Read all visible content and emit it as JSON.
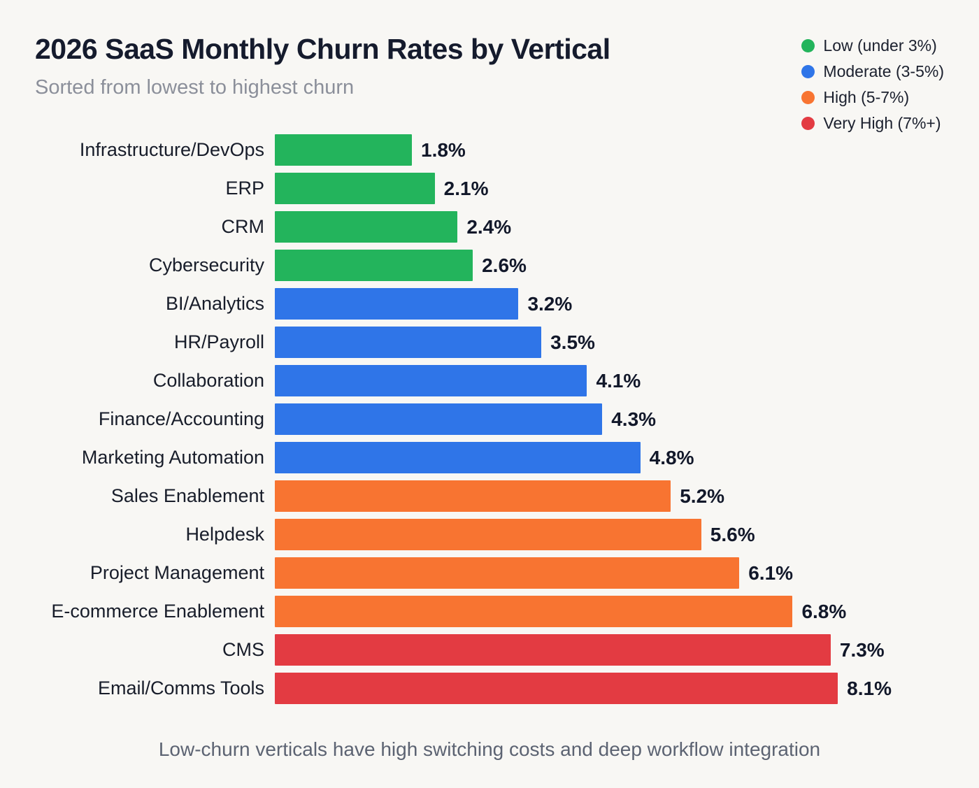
{
  "header": {
    "title": "2026 SaaS Monthly Churn Rates by Vertical",
    "subtitle": "Sorted from lowest to highest churn"
  },
  "legend": {
    "position": "top-right",
    "items": [
      {
        "label": "Low (under 3%)",
        "tier": "low",
        "color": "#23b45c"
      },
      {
        "label": "Moderate (3-5%)",
        "tier": "moderate",
        "color": "#2f75e8"
      },
      {
        "label": "High (5-7%)",
        "tier": "high",
        "color": "#f87431"
      },
      {
        "label": "Very High (7%+)",
        "tier": "very_high",
        "color": "#e33b42"
      }
    ]
  },
  "chart_data": {
    "type": "bar",
    "orientation": "horizontal",
    "title": "2026 SaaS Monthly Churn Rates by Vertical",
    "subtitle": "Sorted from lowest to highest churn",
    "xlabel": "",
    "ylabel": "",
    "xlim": [
      0,
      8.1
    ],
    "grid": false,
    "legend_position": "top-right",
    "value_suffix": "%",
    "categories": [
      "Infrastructure/DevOps",
      "ERP",
      "CRM",
      "Cybersecurity",
      "BI/Analytics",
      "HR/Payroll",
      "Collaboration",
      "Finance/Accounting",
      "Marketing Automation",
      "Sales Enablement",
      "Helpdesk",
      "Project Management",
      "E-commerce Enablement",
      "CMS",
      "Email/Comms Tools"
    ],
    "values": [
      1.8,
      2.1,
      2.4,
      2.6,
      3.2,
      3.5,
      4.1,
      4.3,
      4.8,
      5.2,
      5.6,
      6.1,
      6.8,
      7.3,
      8.1
    ],
    "value_labels": [
      "1.8%",
      "2.1%",
      "2.4%",
      "2.6%",
      "3.2%",
      "3.5%",
      "4.1%",
      "4.3%",
      "4.8%",
      "5.2%",
      "5.6%",
      "6.1%",
      "6.8%",
      "7.3%",
      "8.1%"
    ],
    "tiers": [
      "low",
      "low",
      "low",
      "low",
      "moderate",
      "moderate",
      "moderate",
      "moderate",
      "moderate",
      "high",
      "high",
      "high",
      "high",
      "very_high",
      "very_high"
    ],
    "tier_colors": {
      "low": "#23b45c",
      "moderate": "#2f75e8",
      "high": "#f87431",
      "very_high": "#e33b42"
    }
  },
  "footer": {
    "note": "Low-churn verticals have high switching costs and deep workflow integration"
  }
}
